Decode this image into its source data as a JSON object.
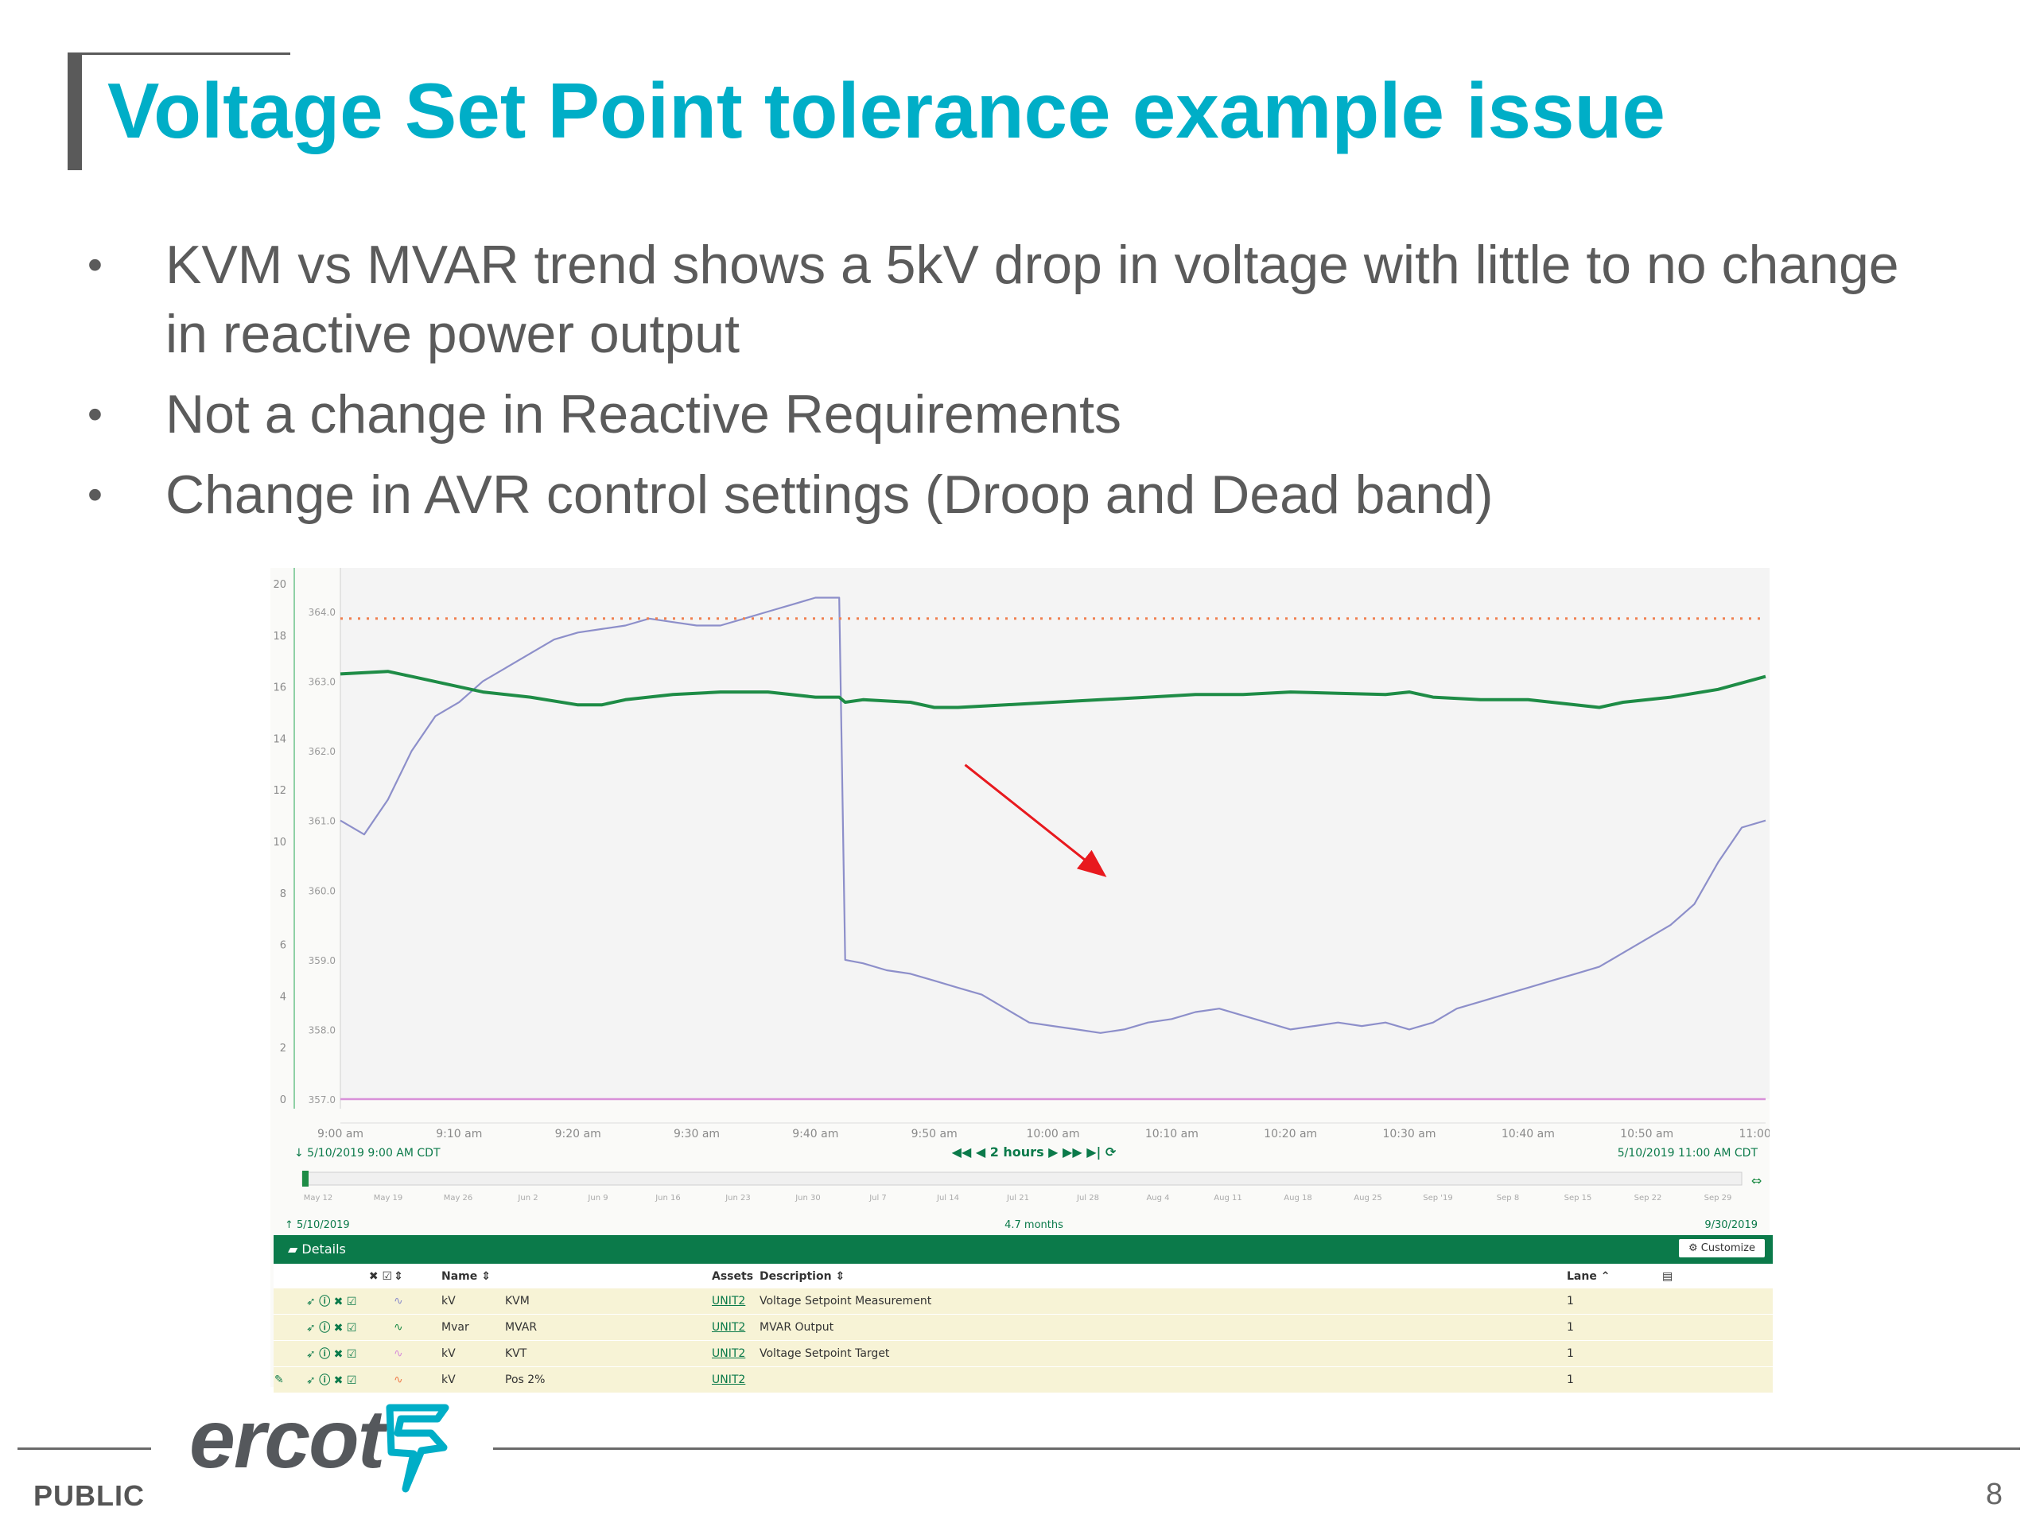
{
  "slide": {
    "title": "Voltage Set Point tolerance example issue",
    "bullets": [
      "KVM vs MVAR trend shows a 5kV drop in voltage with little to no change in reactive power output",
      "Not a change in Reactive Requirements",
      "Change in AVR control settings (Droop and Dead band)"
    ],
    "footer": {
      "classification": "PUBLIC",
      "page_number": "8",
      "logo_text": "ercot"
    }
  },
  "colors": {
    "title": "#00aec7",
    "kvm": "#8d8fca",
    "mvar": "#1e8c46",
    "kvt": "#d890d8",
    "pos2": "#f08050",
    "accent": "#0b7a4a"
  },
  "chart_data": {
    "type": "line",
    "left_axis_ticks": [
      "20",
      "18",
      "16",
      "14",
      "12",
      "10",
      "8",
      "6",
      "4",
      "2",
      "0"
    ],
    "right_axis_ticks": [
      "364.0",
      "363.0",
      "362.0",
      "361.0",
      "360.0",
      "359.0",
      "358.0",
      "357.0"
    ],
    "ylim_left": [
      0,
      20
    ],
    "ylim_right": [
      357,
      364.4
    ],
    "x_ticks": [
      "9:00 am",
      "9:10 am",
      "9:20 am",
      "9:30 am",
      "9:40 am",
      "9:50 am",
      "10:00 am",
      "10:10 am",
      "10:20 am",
      "10:30 am",
      "10:40 am",
      "10:50 am",
      "11:00 am"
    ],
    "xlim_minutes_after_0900": [
      0,
      120
    ],
    "series": [
      {
        "name": "KVM",
        "axis": "right",
        "style": "line",
        "x": [
          0,
          2,
          4,
          6,
          8,
          10,
          12,
          14,
          16,
          18,
          20,
          22,
          24,
          26,
          28,
          30,
          32,
          34,
          36,
          38,
          40,
          42,
          42.5,
          44,
          46,
          48,
          50,
          52,
          54,
          56,
          58,
          60,
          62,
          64,
          66,
          68,
          70,
          72,
          74,
          76,
          78,
          80,
          82,
          84,
          86,
          88,
          90,
          92,
          94,
          96,
          98,
          100,
          102,
          104,
          106,
          108,
          110,
          112,
          114,
          116,
          118,
          120
        ],
        "y": [
          361.0,
          360.8,
          361.3,
          362.0,
          362.5,
          362.7,
          363.0,
          363.2,
          363.4,
          363.6,
          363.7,
          363.75,
          363.8,
          363.9,
          363.85,
          363.8,
          363.8,
          363.9,
          364.0,
          364.1,
          364.2,
          364.2,
          359.0,
          358.95,
          358.85,
          358.8,
          358.7,
          358.6,
          358.5,
          358.3,
          358.1,
          358.05,
          358.0,
          357.95,
          358.0,
          358.1,
          358.15,
          358.25,
          358.3,
          358.2,
          358.1,
          358.0,
          358.05,
          358.1,
          358.05,
          358.1,
          358.0,
          358.1,
          358.3,
          358.4,
          358.5,
          358.6,
          358.7,
          358.8,
          358.9,
          359.1,
          359.3,
          359.5,
          359.8,
          360.4,
          360.9,
          361.0
        ]
      },
      {
        "name": "MVAR",
        "axis": "left",
        "style": "line",
        "x": [
          0,
          4,
          6,
          8,
          10,
          12,
          16,
          20,
          22,
          24,
          28,
          32,
          36,
          40,
          42,
          42.5,
          44,
          48,
          50,
          52,
          56,
          60,
          64,
          68,
          72,
          76,
          80,
          84,
          88,
          90,
          92,
          96,
          100,
          104,
          106,
          108,
          112,
          116,
          120
        ],
        "y": [
          16.5,
          16.6,
          16.4,
          16.2,
          16.0,
          15.8,
          15.6,
          15.3,
          15.3,
          15.5,
          15.7,
          15.8,
          15.8,
          15.6,
          15.6,
          15.4,
          15.5,
          15.4,
          15.2,
          15.2,
          15.3,
          15.4,
          15.5,
          15.6,
          15.7,
          15.7,
          15.8,
          15.75,
          15.7,
          15.8,
          15.6,
          15.5,
          15.5,
          15.3,
          15.2,
          15.4,
          15.6,
          15.9,
          16.4
        ]
      },
      {
        "name": "KVT",
        "axis": "left",
        "style": "line",
        "x": [
          0,
          120
        ],
        "y": [
          0,
          0
        ]
      },
      {
        "name": "Pos 2%",
        "axis": "right",
        "style": "dotted",
        "x": [
          0,
          120
        ],
        "y": [
          363.9,
          363.9
        ]
      }
    ],
    "time_bar": {
      "start": "5/10/2019 9:00 AM CDT",
      "end": "5/10/2019 11:00 AM CDT",
      "window": "2 hours",
      "range_start": "5/10/2019",
      "range_end": "9/30/2019",
      "range_span": "4.7 months",
      "overview_ticks": [
        "May 12",
        "May 19",
        "May 26",
        "Jun 2",
        "Jun 9",
        "Jun 16",
        "Jun 23",
        "Jun 30",
        "Jul 7",
        "Jul 14",
        "Jul 21",
        "Jul 28",
        "Aug 4",
        "Aug 11",
        "Aug 18",
        "Aug 25",
        "Sep '19",
        "Sep 8",
        "Sep 15",
        "Sep 22",
        "Sep 29"
      ]
    },
    "annotation": {
      "type": "arrow",
      "color": "#e8191e",
      "points_at": "MVAR"
    }
  },
  "details": {
    "label": "Details",
    "customize_label": "Customize",
    "headers": {
      "name": "Name",
      "assets": "Assets",
      "description": "Description",
      "lane": "Lane"
    },
    "rows": [
      {
        "unit": "kV",
        "name": "KVM",
        "asset": "UNIT2",
        "description": "Voltage Setpoint Measurement",
        "lane": "1"
      },
      {
        "unit": "Mvar",
        "name": "MVAR",
        "asset": "UNIT2",
        "description": "MVAR Output",
        "lane": "1"
      },
      {
        "unit": "kV",
        "name": "KVT",
        "asset": "UNIT2",
        "description": "Voltage Setpoint Target",
        "lane": "1"
      },
      {
        "unit": "kV",
        "name": "Pos 2%",
        "asset": "UNIT2",
        "description": "",
        "lane": "1"
      }
    ]
  }
}
